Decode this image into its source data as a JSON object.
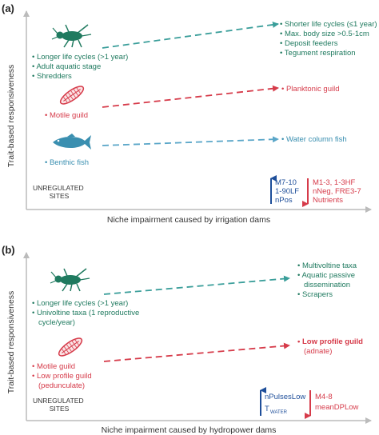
{
  "colors": {
    "macroinvertebrates": "#1f7a5f",
    "diatoms": "#d63b4a",
    "fish": "#3a8fb0",
    "increase_arrow": "#1f4f9a",
    "decrease_arrow": "#d63b4a",
    "axis": "#bbbbbb"
  },
  "icons": [
    "insect-icon",
    "diatom-icon",
    "fish-icon"
  ],
  "panel_a": {
    "label": "(a)",
    "y_axis_label": "Trait-based responsiveness",
    "x_axis_label": "Niche impairment caused by irrigation dams",
    "unregulated": [
      "UNREGULATED",
      "SITES"
    ],
    "macro_left": [
      "• Longer life cycles (>1 year)",
      "• Adult aquatic stage",
      "• Shredders"
    ],
    "macro_right": [
      "• Shorter life cycles (≤1 year)",
      "• Max. body size >0.5-1cm",
      "• Deposit feeders",
      "• Tegument respiration"
    ],
    "diatom_left": "• Motile guild",
    "diatom_right": "• Planktonic guild",
    "fish_left": "• Benthic fish",
    "fish_right": "• Water column fish",
    "increase_vars": [
      "M7-10",
      "1-90LF",
      "nPos"
    ],
    "decrease_vars": [
      "M1-3, 1-3HF",
      "nNeg, FRE3-7",
      "Nutrients"
    ]
  },
  "panel_b": {
    "label": "(b)",
    "y_axis_label": "Trait-based responsiveness",
    "x_axis_label": "Niche impairment caused by hydropower dams",
    "unregulated": [
      "UNREGULATED",
      "SITES"
    ],
    "macro_left": [
      "• Longer life cycles (>1 year)",
      "• Univoltine taxa (1 reproductive",
      "cycle/year)"
    ],
    "macro_right": [
      "• Multivoltine taxa",
      "• Aquatic passive",
      "dissemination",
      "• Scrapers"
    ],
    "diatom_left": [
      "• Motile guild",
      "• Low profile guild",
      "(pedunculate)"
    ],
    "diatom_right": [
      "• Low profile guild",
      "(adnate)"
    ],
    "increase_vars": [
      "nPulsesLow",
      "T"
    ],
    "increase_sub": "WATER",
    "decrease_vars": [
      "M4-8",
      "meanDPLow"
    ]
  }
}
